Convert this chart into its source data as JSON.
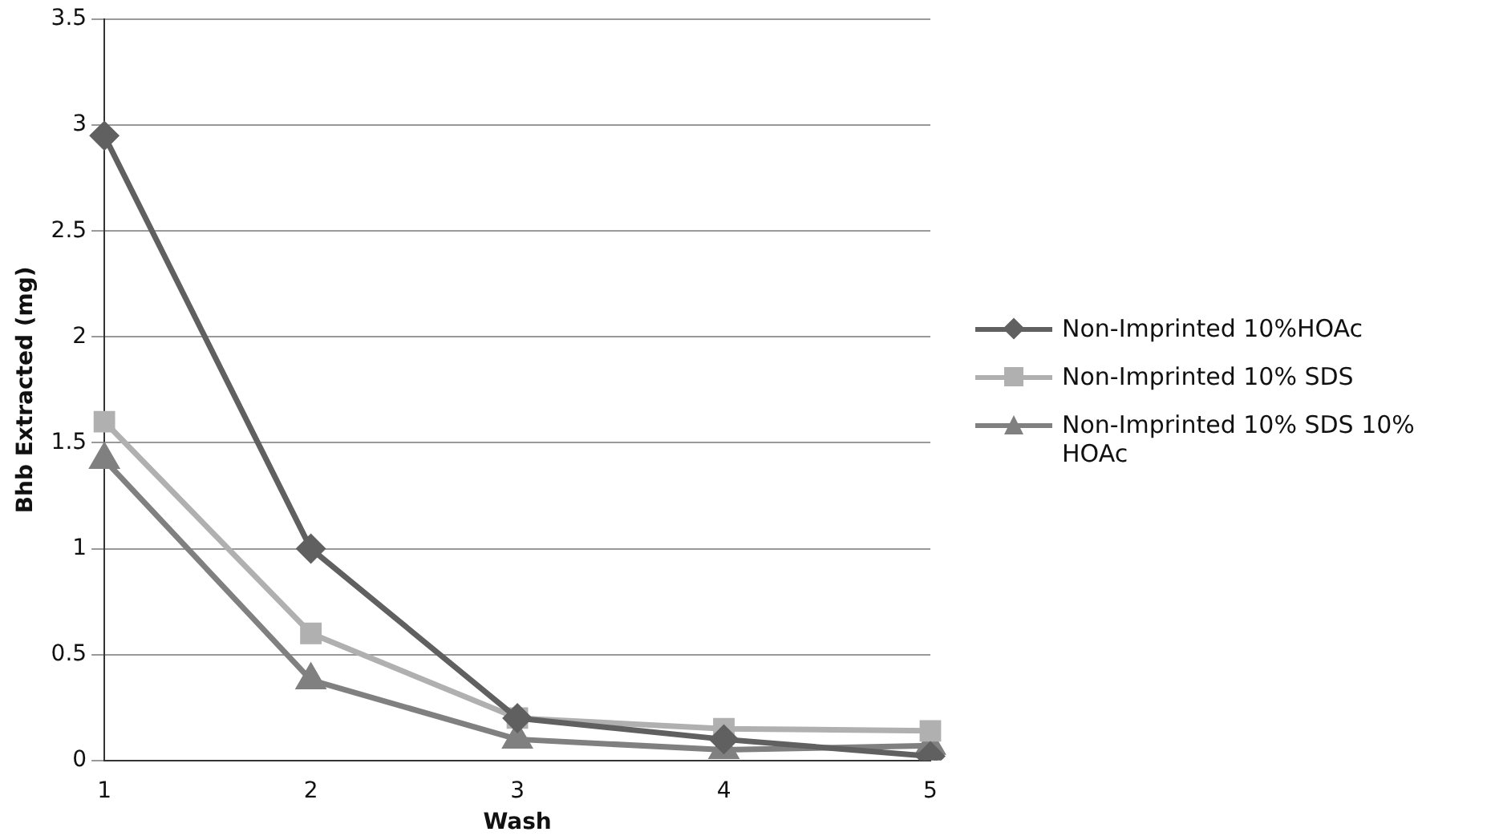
{
  "chart_data": {
    "type": "line",
    "xlabel": "Wash",
    "ylabel": "Bhb Extracted (mg)",
    "categories": [
      "1",
      "2",
      "3",
      "4",
      "5"
    ],
    "series": [
      {
        "name": "Non-Imprinted 10%HOAc",
        "color": "#606060",
        "marker": "diamond",
        "values": [
          2.95,
          1.0,
          0.2,
          0.1,
          0.02
        ]
      },
      {
        "name": "Non-Imprinted 10% SDS",
        "color": "#b0b0b0",
        "marker": "square",
        "values": [
          1.6,
          0.6,
          0.2,
          0.15,
          0.14
        ]
      },
      {
        "name": "Non-Imprinted 10% SDS 10% HOAc",
        "color": "#808080",
        "marker": "triangle",
        "values": [
          1.42,
          0.38,
          0.1,
          0.05,
          0.07
        ]
      }
    ],
    "ylim": [
      0,
      3.5
    ],
    "yticks": [
      0,
      0.5,
      1,
      1.5,
      2,
      2.5,
      3,
      3.5
    ],
    "grid": "y",
    "legend": "right",
    "line_style": "solid"
  }
}
